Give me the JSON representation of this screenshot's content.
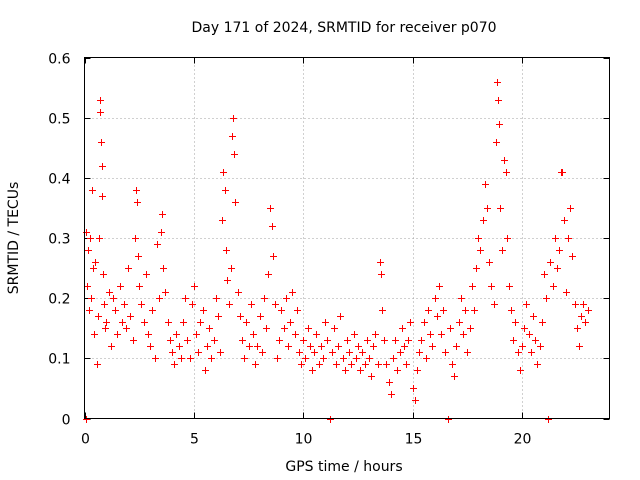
{
  "chart_data": {
    "type": "scatter",
    "title": "Day 171 of 2024, SRMTID for receiver p070",
    "xlabel": "GPS time / hours",
    "ylabel": "SRMTID / TECUs",
    "xlim": [
      0,
      24
    ],
    "ylim": [
      0,
      0.6
    ],
    "xticks": [
      0,
      5,
      10,
      15,
      20
    ],
    "xtick_labels": [
      "0",
      "5",
      "10",
      "15",
      "20"
    ],
    "yticks": [
      0,
      0.1,
      0.2,
      0.3,
      0.4,
      0.5,
      0.6
    ],
    "ytick_labels": [
      "0",
      "0.1",
      "0.2",
      "0.3",
      "0.4",
      "0.5",
      "0.6"
    ],
    "grid": true,
    "marker": "+",
    "color": "#ff0000",
    "series": [
      {
        "name": "SRMTID",
        "points": [
          [
            0.05,
            0.0
          ],
          [
            0.08,
            0.31
          ],
          [
            0.12,
            0.22
          ],
          [
            0.15,
            0.28
          ],
          [
            0.2,
            0.18
          ],
          [
            0.25,
            0.3
          ],
          [
            0.3,
            0.2
          ],
          [
            0.35,
            0.38
          ],
          [
            0.4,
            0.25
          ],
          [
            0.45,
            0.14
          ],
          [
            0.5,
            0.26
          ],
          [
            0.55,
            0.09
          ],
          [
            0.6,
            0.17
          ],
          [
            0.65,
            0.3
          ],
          [
            0.7,
            0.53
          ],
          [
            0.72,
            0.51
          ],
          [
            0.75,
            0.46
          ],
          [
            0.78,
            0.42
          ],
          [
            0.8,
            0.37
          ],
          [
            0.85,
            0.24
          ],
          [
            0.9,
            0.19
          ],
          [
            0.95,
            0.15
          ],
          [
            1.0,
            0.16
          ],
          [
            1.1,
            0.21
          ],
          [
            1.2,
            0.12
          ],
          [
            1.3,
            0.2
          ],
          [
            1.4,
            0.18
          ],
          [
            1.5,
            0.14
          ],
          [
            1.6,
            0.22
          ],
          [
            1.7,
            0.16
          ],
          [
            1.8,
            0.19
          ],
          [
            1.9,
            0.15
          ],
          [
            2.0,
            0.25
          ],
          [
            2.1,
            0.17
          ],
          [
            2.2,
            0.13
          ],
          [
            2.3,
            0.3
          ],
          [
            2.35,
            0.38
          ],
          [
            2.4,
            0.36
          ],
          [
            2.45,
            0.27
          ],
          [
            2.5,
            0.22
          ],
          [
            2.6,
            0.19
          ],
          [
            2.7,
            0.16
          ],
          [
            2.8,
            0.24
          ],
          [
            2.9,
            0.14
          ],
          [
            3.0,
            0.12
          ],
          [
            3.1,
            0.18
          ],
          [
            3.2,
            0.1
          ],
          [
            3.3,
            0.29
          ],
          [
            3.4,
            0.2
          ],
          [
            3.5,
            0.31
          ],
          [
            3.55,
            0.34
          ],
          [
            3.6,
            0.25
          ],
          [
            3.7,
            0.21
          ],
          [
            3.8,
            0.16
          ],
          [
            3.9,
            0.13
          ],
          [
            4.0,
            0.11
          ],
          [
            4.1,
            0.09
          ],
          [
            4.2,
            0.14
          ],
          [
            4.3,
            0.12
          ],
          [
            4.4,
            0.1
          ],
          [
            4.5,
            0.16
          ],
          [
            4.6,
            0.2
          ],
          [
            4.7,
            0.13
          ],
          [
            4.8,
            0.1
          ],
          [
            4.9,
            0.19
          ],
          [
            5.0,
            0.22
          ],
          [
            5.1,
            0.14
          ],
          [
            5.2,
            0.11
          ],
          [
            5.3,
            0.16
          ],
          [
            5.4,
            0.18
          ],
          [
            5.5,
            0.08
          ],
          [
            5.6,
            0.12
          ],
          [
            5.7,
            0.15
          ],
          [
            5.8,
            0.1
          ],
          [
            5.9,
            0.13
          ],
          [
            6.0,
            0.2
          ],
          [
            6.1,
            0.17
          ],
          [
            6.2,
            0.11
          ],
          [
            6.3,
            0.33
          ],
          [
            6.35,
            0.41
          ],
          [
            6.4,
            0.38
          ],
          [
            6.45,
            0.28
          ],
          [
            6.5,
            0.23
          ],
          [
            6.6,
            0.19
          ],
          [
            6.7,
            0.25
          ],
          [
            6.75,
            0.47
          ],
          [
            6.8,
            0.5
          ],
          [
            6.85,
            0.44
          ],
          [
            6.9,
            0.36
          ],
          [
            7.0,
            0.21
          ],
          [
            7.1,
            0.17
          ],
          [
            7.2,
            0.13
          ],
          [
            7.3,
            0.1
          ],
          [
            7.4,
            0.16
          ],
          [
            7.5,
            0.12
          ],
          [
            7.6,
            0.19
          ],
          [
            7.7,
            0.14
          ],
          [
            7.8,
            0.09
          ],
          [
            7.9,
            0.12
          ],
          [
            8.0,
            0.17
          ],
          [
            8.1,
            0.11
          ],
          [
            8.2,
            0.2
          ],
          [
            8.3,
            0.15
          ],
          [
            8.4,
            0.24
          ],
          [
            8.5,
            0.35
          ],
          [
            8.55,
            0.32
          ],
          [
            8.6,
            0.27
          ],
          [
            8.7,
            0.19
          ],
          [
            8.8,
            0.1
          ],
          [
            8.9,
            0.13
          ],
          [
            9.0,
            0.18
          ],
          [
            9.1,
            0.15
          ],
          [
            9.2,
            0.2
          ],
          [
            9.3,
            0.12
          ],
          [
            9.4,
            0.16
          ],
          [
            9.5,
            0.21
          ],
          [
            9.6,
            0.14
          ],
          [
            9.7,
            0.18
          ],
          [
            9.8,
            0.11
          ],
          [
            9.9,
            0.09
          ],
          [
            10.0,
            0.13
          ],
          [
            10.1,
            0.1
          ],
          [
            10.2,
            0.15
          ],
          [
            10.3,
            0.12
          ],
          [
            10.4,
            0.08
          ],
          [
            10.5,
            0.11
          ],
          [
            10.6,
            0.14
          ],
          [
            10.7,
            0.09
          ],
          [
            10.8,
            0.12
          ],
          [
            10.9,
            0.1
          ],
          [
            11.0,
            0.16
          ],
          [
            11.1,
            0.13
          ],
          [
            11.2,
            0.0
          ],
          [
            11.3,
            0.11
          ],
          [
            11.4,
            0.15
          ],
          [
            11.5,
            0.09
          ],
          [
            11.6,
            0.12
          ],
          [
            11.7,
            0.17
          ],
          [
            11.8,
            0.1
          ],
          [
            11.9,
            0.08
          ],
          [
            12.0,
            0.13
          ],
          [
            12.1,
            0.11
          ],
          [
            12.2,
            0.09
          ],
          [
            12.3,
            0.14
          ],
          [
            12.4,
            0.1
          ],
          [
            12.5,
            0.12
          ],
          [
            12.6,
            0.08
          ],
          [
            12.7,
            0.11
          ],
          [
            12.8,
            0.09
          ],
          [
            12.9,
            0.13
          ],
          [
            13.0,
            0.1
          ],
          [
            13.1,
            0.07
          ],
          [
            13.2,
            0.12
          ],
          [
            13.3,
            0.14
          ],
          [
            13.4,
            0.09
          ],
          [
            13.5,
            0.26
          ],
          [
            13.55,
            0.24
          ],
          [
            13.6,
            0.18
          ],
          [
            13.7,
            0.13
          ],
          [
            13.8,
            0.09
          ],
          [
            13.9,
            0.06
          ],
          [
            14.0,
            0.04
          ],
          [
            14.1,
            0.1
          ],
          [
            14.2,
            0.13
          ],
          [
            14.3,
            0.08
          ],
          [
            14.4,
            0.11
          ],
          [
            14.5,
            0.15
          ],
          [
            14.6,
            0.12
          ],
          [
            14.7,
            0.09
          ],
          [
            14.8,
            0.13
          ],
          [
            14.9,
            0.16
          ],
          [
            15.0,
            0.05
          ],
          [
            15.1,
            0.03
          ],
          [
            15.2,
            0.08
          ],
          [
            15.3,
            0.11
          ],
          [
            15.4,
            0.13
          ],
          [
            15.5,
            0.16
          ],
          [
            15.6,
            0.1
          ],
          [
            15.7,
            0.18
          ],
          [
            15.8,
            0.14
          ],
          [
            15.9,
            0.12
          ],
          [
            16.0,
            0.2
          ],
          [
            16.1,
            0.17
          ],
          [
            16.2,
            0.22
          ],
          [
            16.3,
            0.14
          ],
          [
            16.4,
            0.18
          ],
          [
            16.5,
            0.11
          ],
          [
            16.6,
            0.0
          ],
          [
            16.7,
            0.15
          ],
          [
            16.8,
            0.09
          ],
          [
            16.9,
            0.07
          ],
          [
            17.0,
            0.12
          ],
          [
            17.1,
            0.16
          ],
          [
            17.2,
            0.2
          ],
          [
            17.3,
            0.14
          ],
          [
            17.4,
            0.18
          ],
          [
            17.5,
            0.11
          ],
          [
            17.6,
            0.15
          ],
          [
            17.7,
            0.22
          ],
          [
            17.8,
            0.18
          ],
          [
            17.9,
            0.25
          ],
          [
            18.0,
            0.3
          ],
          [
            18.1,
            0.28
          ],
          [
            18.2,
            0.33
          ],
          [
            18.3,
            0.39
          ],
          [
            18.4,
            0.35
          ],
          [
            18.5,
            0.26
          ],
          [
            18.6,
            0.22
          ],
          [
            18.7,
            0.19
          ],
          [
            18.8,
            0.46
          ],
          [
            18.85,
            0.56
          ],
          [
            18.9,
            0.53
          ],
          [
            18.95,
            0.49
          ],
          [
            19.0,
            0.35
          ],
          [
            19.1,
            0.28
          ],
          [
            19.2,
            0.43
          ],
          [
            19.25,
            0.41
          ],
          [
            19.3,
            0.3
          ],
          [
            19.4,
            0.22
          ],
          [
            19.5,
            0.18
          ],
          [
            19.6,
            0.13
          ],
          [
            19.7,
            0.16
          ],
          [
            19.8,
            0.11
          ],
          [
            19.9,
            0.08
          ],
          [
            20.0,
            0.12
          ],
          [
            20.1,
            0.15
          ],
          [
            20.2,
            0.19
          ],
          [
            20.3,
            0.14
          ],
          [
            20.4,
            0.11
          ],
          [
            20.5,
            0.17
          ],
          [
            20.6,
            0.13
          ],
          [
            20.7,
            0.09
          ],
          [
            20.8,
            0.12
          ],
          [
            20.9,
            0.16
          ],
          [
            21.0,
            0.24
          ],
          [
            21.1,
            0.2
          ],
          [
            21.2,
            0.0
          ],
          [
            21.3,
            0.26
          ],
          [
            21.4,
            0.22
          ],
          [
            21.5,
            0.3
          ],
          [
            21.6,
            0.25
          ],
          [
            21.7,
            0.28
          ],
          [
            21.8,
            0.41
          ],
          [
            21.85,
            0.41
          ],
          [
            21.9,
            0.33
          ],
          [
            22.0,
            0.21
          ],
          [
            22.1,
            0.3
          ],
          [
            22.2,
            0.35
          ],
          [
            22.3,
            0.27
          ],
          [
            22.4,
            0.19
          ],
          [
            22.5,
            0.15
          ],
          [
            22.6,
            0.12
          ],
          [
            22.7,
            0.17
          ],
          [
            22.8,
            0.19
          ],
          [
            22.9,
            0.16
          ],
          [
            23.0,
            0.18
          ]
        ]
      }
    ]
  }
}
